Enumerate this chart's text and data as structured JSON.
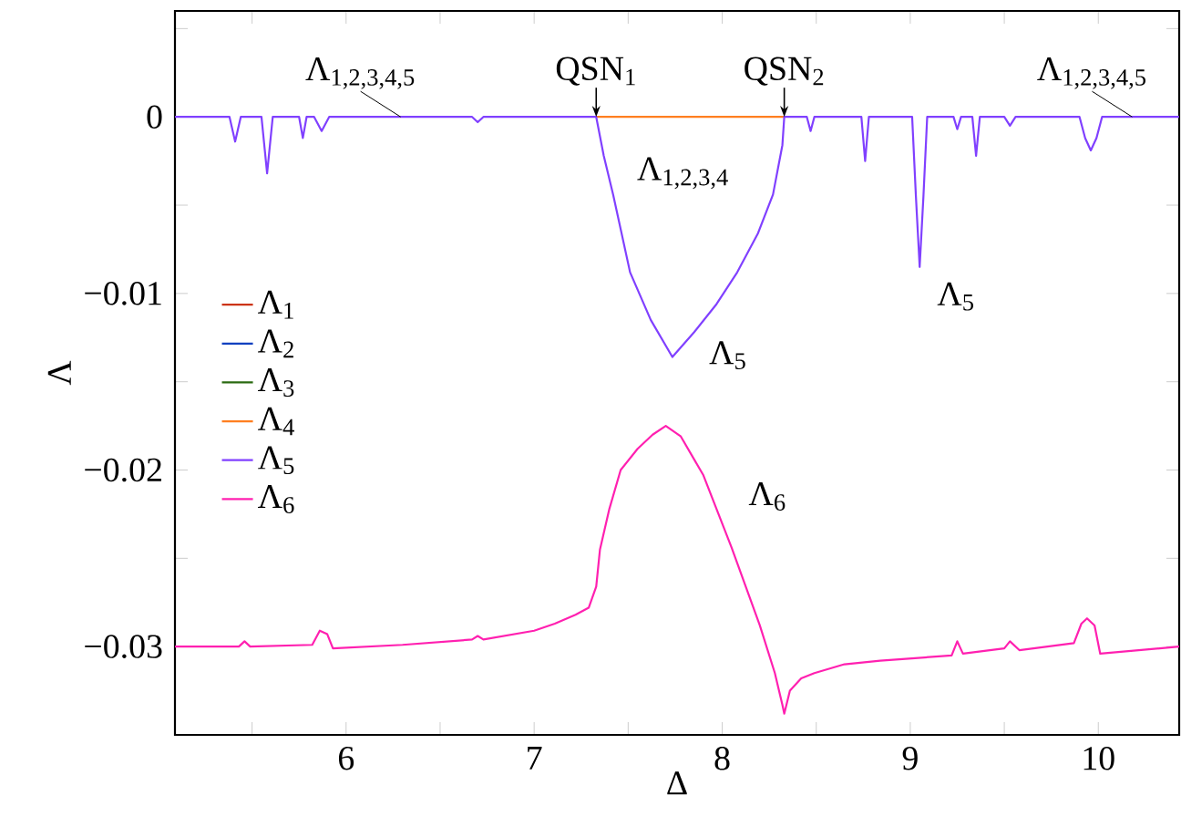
{
  "chart_data": {
    "type": "line",
    "xlabel": "Δ",
    "ylabel": "Λ",
    "xlim": [
      5.09,
      10.43
    ],
    "ylim": [
      -0.035,
      0.006
    ],
    "xticks": [
      {
        "value": 5.5,
        "label": null
      },
      6,
      {
        "value": 6.5,
        "label": null
      },
      7,
      {
        "value": 7.5,
        "label": null
      },
      8,
      {
        "value": 8.5,
        "label": null
      },
      9,
      {
        "value": 9.5,
        "label": null
      },
      10
    ],
    "yticks": [
      {
        "value": -0.03,
        "label": "−0.03"
      },
      {
        "value": -0.025,
        "label": null
      },
      {
        "value": -0.02,
        "label": "−0.02"
      },
      {
        "value": -0.015,
        "label": null
      },
      {
        "value": -0.01,
        "label": "−0.01"
      },
      {
        "value": -0.005,
        "label": null
      },
      0,
      {
        "value": 0.005,
        "label": null
      }
    ],
    "legend": "left",
    "marker": "none",
    "line_style": "solid",
    "series": [
      {
        "name": "Λ$_{1}$",
        "color": "#cc3311"
      },
      {
        "name": "Λ$_{2}$",
        "color": "#1040c0"
      },
      {
        "name": "Λ$_{3}$",
        "color": "#2a6a10"
      },
      {
        "name": "Λ$_{4}$",
        "color": "#ff7f20",
        "x": [
          7.33,
          8.33
        ],
        "values": [
          0,
          0
        ]
      },
      {
        "name": "Λ$_{5}$",
        "color": "#8040ff",
        "x": [
          5.09,
          5.38,
          5.41,
          5.44,
          5.55,
          5.58,
          5.61,
          5.75,
          5.77,
          5.79,
          5.83,
          5.87,
          5.91,
          6.67,
          6.7,
          6.73,
          7.33,
          7.37,
          7.42,
          7.51,
          7.62,
          7.735,
          7.85,
          7.97,
          8.08,
          8.19,
          8.27,
          8.32,
          8.33,
          8.45,
          8.47,
          8.49,
          8.74,
          8.76,
          8.78,
          9.01,
          9.03,
          9.05,
          9.07,
          9.09,
          9.23,
          9.25,
          9.27,
          9.33,
          9.35,
          9.37,
          9.5,
          9.53,
          9.56,
          9.9,
          9.93,
          9.96,
          9.99,
          10.02,
          10.43
        ],
        "values": [
          0,
          0,
          -0.0014,
          0,
          0,
          -0.0032,
          0,
          0,
          -0.0012,
          0,
          0,
          -0.0008,
          0,
          0,
          -0.0003,
          0,
          0,
          -0.0022,
          -0.0044,
          -0.0088,
          -0.0115,
          -0.0136,
          -0.0122,
          -0.0106,
          -0.0088,
          -0.0066,
          -0.0044,
          -0.0016,
          0,
          0,
          -0.0008,
          0,
          0,
          -0.0025,
          0,
          0,
          -0.0045,
          -0.0085,
          -0.0045,
          0,
          0,
          -0.0007,
          0,
          0,
          -0.0022,
          0,
          0,
          -0.0005,
          0,
          0,
          -0.0012,
          -0.0019,
          -0.0012,
          0,
          0
        ]
      },
      {
        "name": "Λ$_{6}$",
        "color": "#ff20b0",
        "x": [
          5.09,
          5.43,
          5.46,
          5.49,
          5.82,
          5.86,
          5.9,
          5.93,
          6.3,
          6.67,
          6.7,
          6.73,
          7.0,
          7.11,
          7.22,
          7.29,
          7.33,
          7.35,
          7.4,
          7.46,
          7.55,
          7.63,
          7.7,
          7.78,
          7.9,
          8.05,
          8.2,
          8.28,
          8.32,
          8.33,
          8.36,
          8.42,
          8.49,
          8.65,
          8.84,
          9.22,
          9.25,
          9.28,
          9.5,
          9.53,
          9.58,
          9.87,
          9.91,
          9.94,
          9.98,
          10.01,
          10.43
        ],
        "values": [
          -0.03,
          -0.03,
          -0.0297,
          -0.03,
          -0.0299,
          -0.0291,
          -0.0293,
          -0.0301,
          -0.0299,
          -0.0296,
          -0.0294,
          -0.0296,
          -0.0291,
          -0.0287,
          -0.0282,
          -0.0278,
          -0.0266,
          -0.0245,
          -0.0222,
          -0.02,
          -0.0188,
          -0.018,
          -0.0175,
          -0.0181,
          -0.0203,
          -0.0244,
          -0.0288,
          -0.0315,
          -0.0333,
          -0.0338,
          -0.0325,
          -0.0318,
          -0.0315,
          -0.031,
          -0.0308,
          -0.0305,
          -0.0297,
          -0.0304,
          -0.0301,
          -0.0297,
          -0.0302,
          -0.0298,
          -0.0287,
          -0.0284,
          -0.0288,
          -0.0304,
          -0.03
        ]
      }
    ],
    "annotations": [
      {
        "text": "Λ$_{1,2,3,4,5}$",
        "x": 6.29,
        "y": 0
      },
      {
        "text": "QSN$_{1}$",
        "x": 7.33,
        "y": 0
      },
      {
        "text": "QSN$_{2}$",
        "x": 8.33,
        "y": 0
      },
      {
        "text": "Λ$_{1,2,3,4,5}$",
        "x": 10.18,
        "y": 0
      },
      "Λ$_{1,2,3,4}$",
      {
        "text": "Λ$_{5}$",
        "x": 7.77,
        "y": -0.0135
      },
      {
        "text": "Λ$_{5}$",
        "x": 9.06,
        "y": -0.0085
      },
      {
        "text": "Λ$_{6}$",
        "x": 7.98,
        "y": -0.0215
      }
    ]
  }
}
